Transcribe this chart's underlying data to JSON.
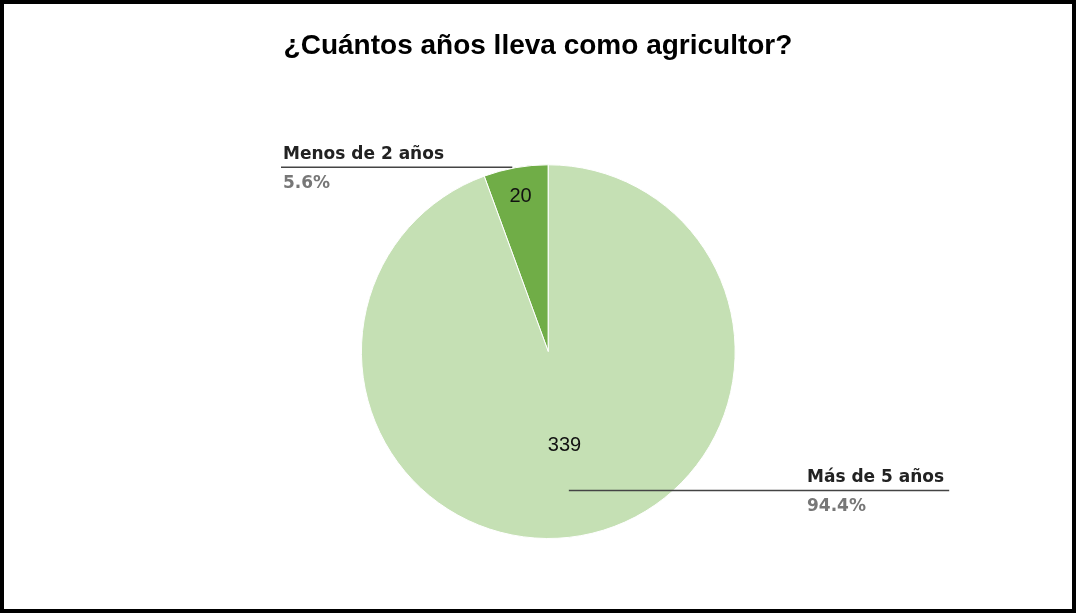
{
  "chart_data": {
    "type": "pie",
    "title": "¿Cuántos años lleva como agricultor?",
    "categories": [
      "Menos de 2 años",
      "Más de 5 años"
    ],
    "values": [
      20,
      339
    ],
    "colors": [
      "#70ad47",
      "#c5e0b4"
    ],
    "data_labels": true,
    "annotations": [
      "5.6%",
      "94.4%"
    ],
    "legend": false
  }
}
